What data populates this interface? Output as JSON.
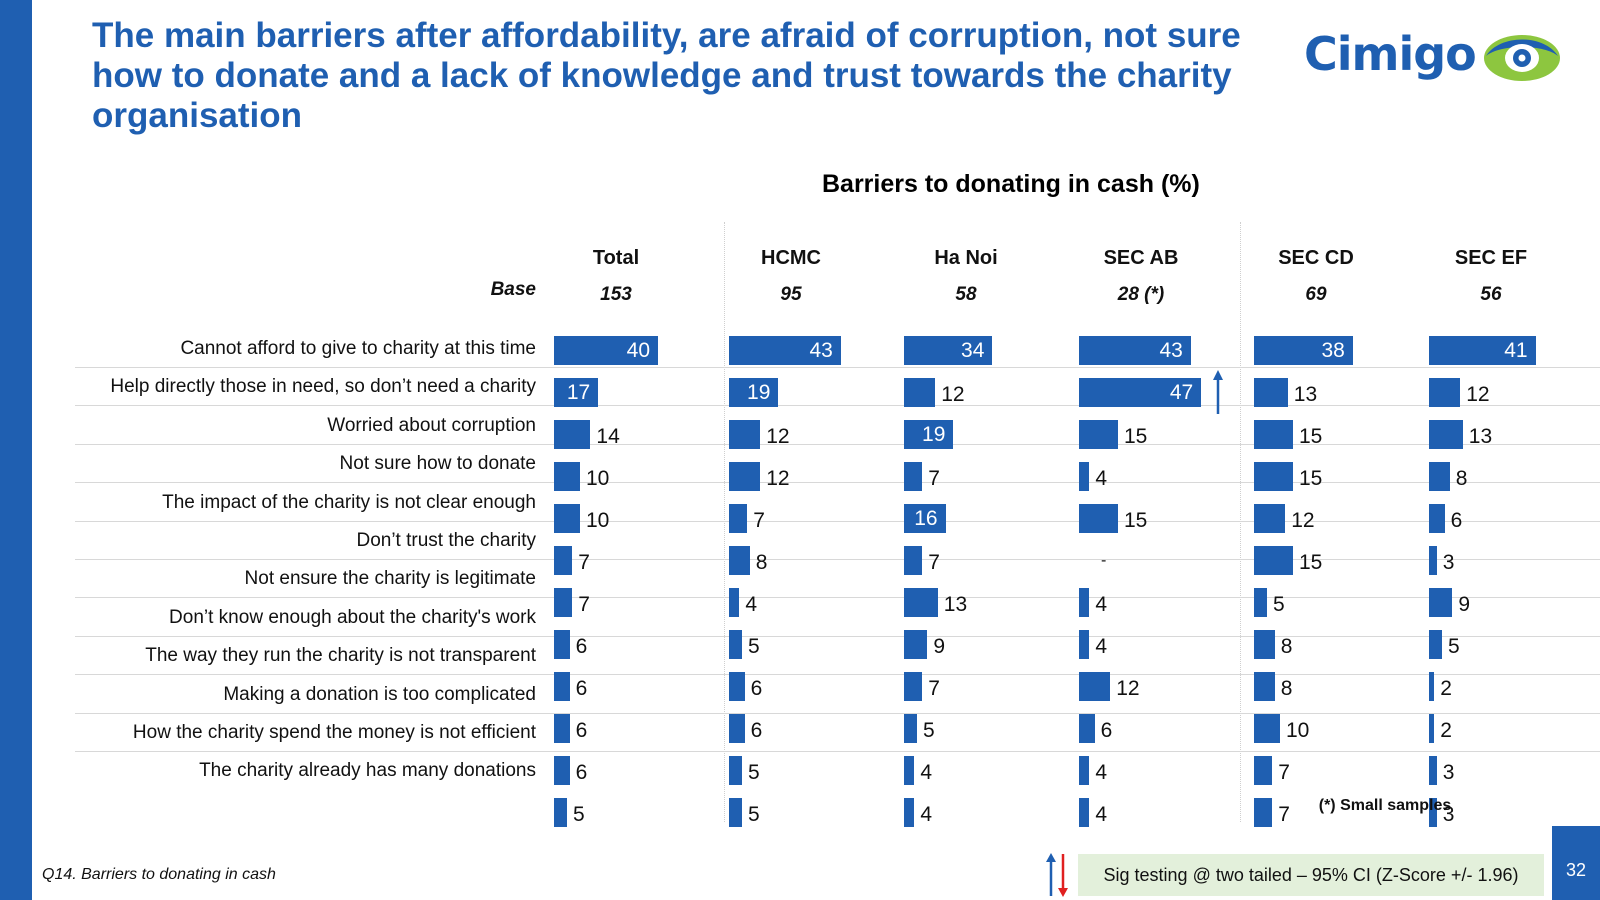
{
  "title": "The main barriers after affordability, are afraid of corruption, not sure how to donate and a lack of knowledge and trust towards the charity organisation",
  "logo": {
    "text": "Cimigo"
  },
  "colors": {
    "brand_blue": "#1f5fb1",
    "logo_green": "#8dc63f",
    "sig_box": "#e3f0db",
    "sig_down_red": "#e02020"
  },
  "chart_data": {
    "type": "bar",
    "orientation": "horizontal",
    "title": "Barriers to donating in cash (%)",
    "base_label": "Base",
    "categories": [
      "Cannot afford to give to charity at this time",
      "Help directly those in need, so don’t need a charity",
      "Worried about corruption",
      "Not sure how to donate",
      "The impact of the charity is not clear enough",
      "Don’t trust the charity",
      "Not ensure the charity is legitimate",
      "Don’t know enough about the charity's work",
      "The way they run the charity is not transparent",
      "Making a donation is too complicated",
      "How the charity spend the money is not efficient",
      "The charity already has many donations"
    ],
    "series": [
      {
        "name": "Total",
        "base": "153",
        "values": [
          40,
          17,
          14,
          10,
          10,
          7,
          7,
          6,
          6,
          6,
          6,
          5
        ]
      },
      {
        "name": "HCMC",
        "base": "95",
        "values": [
          43,
          19,
          12,
          12,
          7,
          8,
          4,
          5,
          6,
          6,
          5,
          5
        ]
      },
      {
        "name": "Ha Noi",
        "base": "58",
        "values": [
          34,
          12,
          19,
          7,
          16,
          7,
          13,
          9,
          7,
          5,
          4,
          4
        ]
      },
      {
        "name": "SEC AB",
        "base": "28 (*)",
        "values": [
          43,
          47,
          15,
          4,
          15,
          null,
          4,
          4,
          12,
          6,
          4,
          4
        ]
      },
      {
        "name": "SEC CD",
        "base": "69",
        "values": [
          38,
          13,
          15,
          15,
          12,
          15,
          5,
          8,
          8,
          10,
          7,
          7
        ]
      },
      {
        "name": "SEC EF",
        "base": "56",
        "values": [
          41,
          12,
          13,
          8,
          6,
          3,
          9,
          5,
          2,
          2,
          3,
          3
        ]
      }
    ],
    "missing_label": "-",
    "sig_higher": [
      {
        "series": "SEC AB",
        "category": "Help directly those in need, so don’t need a charity"
      }
    ],
    "xlim": [
      0,
      60
    ]
  },
  "notes": {
    "small_samples": "(*) Small samples",
    "question": "Q14. Barriers to donating in cash",
    "sig_testing": "Sig testing @ two tailed – 95% CI (Z-Score +/- 1.96)"
  },
  "page_number": "32"
}
